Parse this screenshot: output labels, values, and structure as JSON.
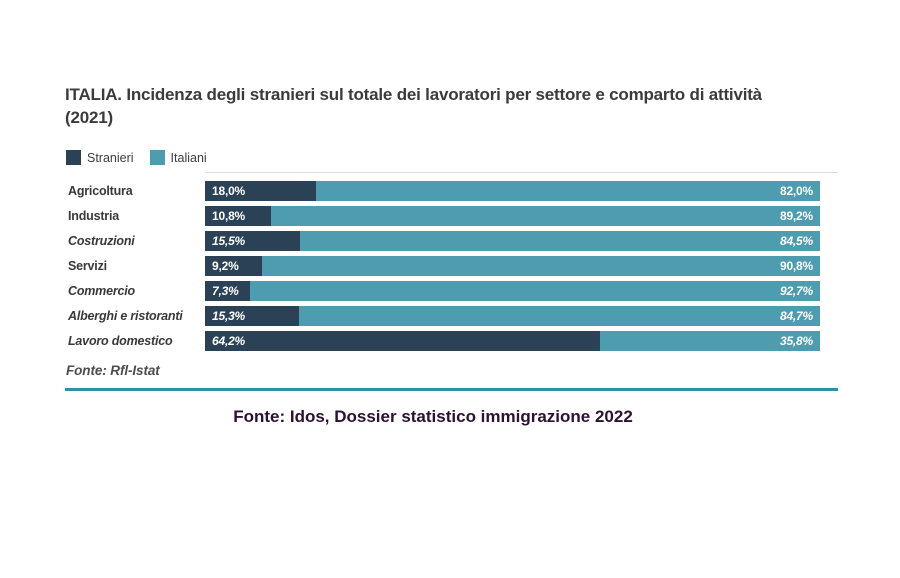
{
  "page": {
    "background": "#ffffff"
  },
  "chart": {
    "title": "ITALIA. Incidenza degli stranieri sul totale dei lavoratori per settore e comparto di attività (2021)",
    "legend": [
      {
        "label": "Stranieri",
        "color": "#2b4156"
      },
      {
        "label": "Italiani",
        "color": "#4d9caf"
      }
    ],
    "source_note": "Fonte: Rfl-Istat",
    "rule_color": "#2e91a6"
  },
  "caption": "Fonte: Idos, Dossier statistico immigrazione 2022",
  "chart_data": {
    "type": "bar",
    "orientation": "horizontal",
    "stacked": true,
    "unit": "%",
    "title": "ITALIA. Incidenza degli stranieri sul totale dei lavoratori per settore e comparto di attività (2021)",
    "categories": [
      "Agricoltura",
      "Industria",
      "Costruzioni",
      "Servizi",
      "Commercio",
      "Alberghi e ristoranti",
      "Lavoro domestico"
    ],
    "italic_categories": [
      false,
      false,
      true,
      false,
      true,
      true,
      true
    ],
    "series": [
      {
        "name": "Stranieri",
        "color": "#2b4156",
        "values": [
          18.0,
          10.8,
          15.5,
          9.2,
          7.3,
          15.3,
          64.2
        ]
      },
      {
        "name": "Italiani",
        "color": "#4d9caf",
        "values": [
          82.0,
          89.2,
          84.5,
          90.8,
          92.7,
          84.7,
          35.8
        ]
      }
    ],
    "value_label_format": "comma-decimal-percent",
    "xlim": [
      0,
      100
    ],
    "grid": false,
    "legend_position": "top-left",
    "source": "Fonte: Rfl-Istat"
  }
}
